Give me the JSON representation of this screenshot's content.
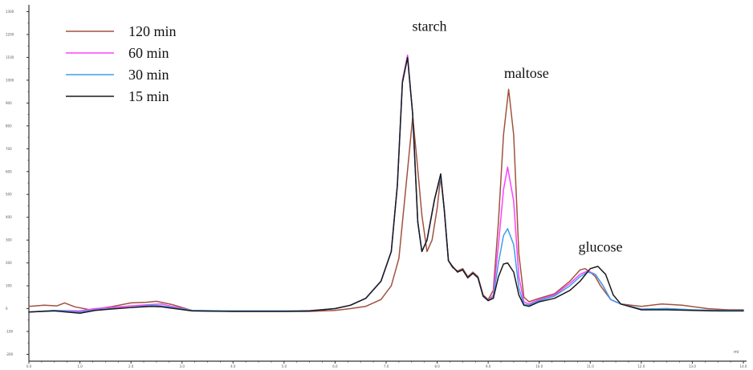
{
  "chart_data": {
    "type": "line",
    "title": "",
    "xlabel": "",
    "ylabel": "",
    "x_unit": "mi",
    "grid": false,
    "legend_position": "top-left",
    "xlim": [
      0.0,
      14.0
    ],
    "ylim": [
      -230,
      1330
    ],
    "x_tick_labels": [
      "0.0",
      "1.0",
      "2.0",
      "3.0",
      "4.0",
      "5.0",
      "6.0",
      "7.0",
      "8.0",
      "9.0",
      "10.0",
      "11.0",
      "12.0",
      "13.0",
      "14.0"
    ],
    "y_tick_labels": [
      "-200",
      "-100",
      "0",
      "100",
      "200",
      "300",
      "400",
      "500",
      "600",
      "700",
      "800",
      "900",
      "1000",
      "1100",
      "1200",
      "1300"
    ],
    "annotations": [
      {
        "text": "starch",
        "x": 7.85,
        "y": 1215
      },
      {
        "text": "maltose",
        "x": 9.75,
        "y": 1010
      },
      {
        "text": "glucose",
        "x": 11.2,
        "y": 250
      }
    ],
    "series": [
      {
        "name": "120 min",
        "color": "#a0523e",
        "points": [
          [
            0.0,
            10
          ],
          [
            0.3,
            15
          ],
          [
            0.55,
            12
          ],
          [
            0.7,
            25
          ],
          [
            0.9,
            8
          ],
          [
            1.2,
            -5
          ],
          [
            1.6,
            8
          ],
          [
            2.0,
            25
          ],
          [
            2.3,
            28
          ],
          [
            2.5,
            32
          ],
          [
            2.8,
            18
          ],
          [
            3.2,
            -8
          ],
          [
            4.0,
            -12
          ],
          [
            5.0,
            -12
          ],
          [
            5.5,
            -12
          ],
          [
            6.0,
            -8
          ],
          [
            6.3,
            0
          ],
          [
            6.6,
            10
          ],
          [
            6.9,
            40
          ],
          [
            7.1,
            100
          ],
          [
            7.25,
            220
          ],
          [
            7.4,
            560
          ],
          [
            7.52,
            840
          ],
          [
            7.6,
            660
          ],
          [
            7.7,
            410
          ],
          [
            7.8,
            250
          ],
          [
            7.9,
            300
          ],
          [
            8.0,
            440
          ],
          [
            8.07,
            580
          ],
          [
            8.14,
            430
          ],
          [
            8.22,
            210
          ],
          [
            8.3,
            180
          ],
          [
            8.4,
            165
          ],
          [
            8.5,
            175
          ],
          [
            8.6,
            140
          ],
          [
            8.7,
            160
          ],
          [
            8.8,
            140
          ],
          [
            8.9,
            60
          ],
          [
            9.0,
            40
          ],
          [
            9.1,
            80
          ],
          [
            9.2,
            380
          ],
          [
            9.3,
            760
          ],
          [
            9.4,
            960
          ],
          [
            9.5,
            760
          ],
          [
            9.6,
            240
          ],
          [
            9.7,
            50
          ],
          [
            9.8,
            30
          ],
          [
            10.0,
            45
          ],
          [
            10.3,
            65
          ],
          [
            10.6,
            120
          ],
          [
            10.8,
            170
          ],
          [
            10.9,
            175
          ],
          [
            11.0,
            160
          ],
          [
            11.1,
            140
          ],
          [
            11.2,
            100
          ],
          [
            11.4,
            40
          ],
          [
            11.6,
            20
          ],
          [
            12.0,
            10
          ],
          [
            12.4,
            20
          ],
          [
            12.8,
            15
          ],
          [
            13.3,
            0
          ],
          [
            13.7,
            -5
          ],
          [
            14.0,
            -5
          ]
        ]
      },
      {
        "name": "60 min",
        "color": "#ff40ff",
        "points": [
          [
            0.0,
            -15
          ],
          [
            0.5,
            -8
          ],
          [
            1.0,
            -10
          ],
          [
            1.3,
            0
          ],
          [
            1.6,
            5
          ],
          [
            2.0,
            12
          ],
          [
            2.4,
            18
          ],
          [
            2.6,
            20
          ],
          [
            2.8,
            10
          ],
          [
            3.2,
            -8
          ],
          [
            4.0,
            -10
          ],
          [
            5.0,
            -10
          ],
          [
            5.5,
            -9
          ],
          [
            6.0,
            0
          ],
          [
            6.3,
            15
          ],
          [
            6.6,
            45
          ],
          [
            6.9,
            120
          ],
          [
            7.1,
            250
          ],
          [
            7.22,
            540
          ],
          [
            7.32,
            1000
          ],
          [
            7.42,
            1110
          ],
          [
            7.52,
            850
          ],
          [
            7.62,
            380
          ],
          [
            7.7,
            250
          ],
          [
            7.8,
            300
          ],
          [
            7.95,
            480
          ],
          [
            8.07,
            580
          ],
          [
            8.14,
            430
          ],
          [
            8.22,
            210
          ],
          [
            8.3,
            185
          ],
          [
            8.4,
            160
          ],
          [
            8.5,
            170
          ],
          [
            8.6,
            135
          ],
          [
            8.7,
            155
          ],
          [
            8.8,
            135
          ],
          [
            8.9,
            55
          ],
          [
            9.0,
            35
          ],
          [
            9.1,
            60
          ],
          [
            9.2,
            280
          ],
          [
            9.3,
            520
          ],
          [
            9.38,
            620
          ],
          [
            9.5,
            470
          ],
          [
            9.6,
            140
          ],
          [
            9.7,
            30
          ],
          [
            9.8,
            20
          ],
          [
            10.0,
            40
          ],
          [
            10.3,
            60
          ],
          [
            10.6,
            110
          ],
          [
            10.8,
            150
          ],
          [
            10.95,
            165
          ],
          [
            11.1,
            150
          ],
          [
            11.25,
            100
          ],
          [
            11.4,
            40
          ],
          [
            11.6,
            20
          ],
          [
            12.0,
            -2
          ],
          [
            12.5,
            0
          ],
          [
            13.0,
            -5
          ],
          [
            13.5,
            -8
          ],
          [
            14.0,
            -8
          ]
        ]
      },
      {
        "name": "30 min",
        "color": "#3f9fe8",
        "points": [
          [
            0.0,
            -15
          ],
          [
            0.5,
            -8
          ],
          [
            1.0,
            -15
          ],
          [
            1.3,
            -5
          ],
          [
            1.6,
            0
          ],
          [
            2.0,
            5
          ],
          [
            2.4,
            15
          ],
          [
            2.6,
            12
          ],
          [
            2.8,
            5
          ],
          [
            3.2,
            -8
          ],
          [
            4.0,
            -10
          ],
          [
            5.0,
            -10
          ],
          [
            5.5,
            -9
          ],
          [
            6.0,
            0
          ],
          [
            6.3,
            15
          ],
          [
            6.6,
            45
          ],
          [
            6.9,
            120
          ],
          [
            7.1,
            250
          ],
          [
            7.22,
            540
          ],
          [
            7.32,
            990
          ],
          [
            7.42,
            1100
          ],
          [
            7.52,
            850
          ],
          [
            7.62,
            380
          ],
          [
            7.7,
            250
          ],
          [
            7.8,
            300
          ],
          [
            7.95,
            480
          ],
          [
            8.07,
            580
          ],
          [
            8.14,
            430
          ],
          [
            8.22,
            210
          ],
          [
            8.3,
            185
          ],
          [
            8.4,
            160
          ],
          [
            8.5,
            170
          ],
          [
            8.6,
            135
          ],
          [
            8.7,
            155
          ],
          [
            8.8,
            135
          ],
          [
            8.9,
            55
          ],
          [
            9.0,
            35
          ],
          [
            9.1,
            50
          ],
          [
            9.2,
            200
          ],
          [
            9.3,
            320
          ],
          [
            9.38,
            350
          ],
          [
            9.5,
            280
          ],
          [
            9.6,
            90
          ],
          [
            9.7,
            20
          ],
          [
            9.8,
            15
          ],
          [
            10.0,
            35
          ],
          [
            10.3,
            55
          ],
          [
            10.6,
            100
          ],
          [
            10.8,
            140
          ],
          [
            10.95,
            160
          ],
          [
            11.1,
            150
          ],
          [
            11.25,
            100
          ],
          [
            11.4,
            40
          ],
          [
            11.6,
            20
          ],
          [
            12.0,
            -2
          ],
          [
            12.5,
            0
          ],
          [
            13.0,
            -5
          ],
          [
            13.5,
            -8
          ],
          [
            14.0,
            -8
          ]
        ]
      },
      {
        "name": "15 min",
        "color": "#1a1a1a",
        "points": [
          [
            0.0,
            -15
          ],
          [
            0.5,
            -10
          ],
          [
            1.0,
            -20
          ],
          [
            1.3,
            -8
          ],
          [
            1.6,
            -2
          ],
          [
            2.0,
            5
          ],
          [
            2.4,
            10
          ],
          [
            2.6,
            8
          ],
          [
            2.8,
            2
          ],
          [
            3.2,
            -10
          ],
          [
            4.0,
            -12
          ],
          [
            5.0,
            -12
          ],
          [
            5.5,
            -10
          ],
          [
            6.0,
            0
          ],
          [
            6.3,
            15
          ],
          [
            6.6,
            45
          ],
          [
            6.9,
            120
          ],
          [
            7.1,
            250
          ],
          [
            7.22,
            540
          ],
          [
            7.32,
            990
          ],
          [
            7.42,
            1100
          ],
          [
            7.52,
            850
          ],
          [
            7.62,
            380
          ],
          [
            7.7,
            250
          ],
          [
            7.8,
            300
          ],
          [
            7.95,
            480
          ],
          [
            8.07,
            590
          ],
          [
            8.14,
            430
          ],
          [
            8.22,
            210
          ],
          [
            8.3,
            185
          ],
          [
            8.4,
            160
          ],
          [
            8.5,
            170
          ],
          [
            8.6,
            135
          ],
          [
            8.7,
            155
          ],
          [
            8.8,
            135
          ],
          [
            8.9,
            55
          ],
          [
            9.0,
            35
          ],
          [
            9.1,
            45
          ],
          [
            9.2,
            140
          ],
          [
            9.3,
            195
          ],
          [
            9.38,
            200
          ],
          [
            9.5,
            160
          ],
          [
            9.6,
            60
          ],
          [
            9.7,
            15
          ],
          [
            9.8,
            10
          ],
          [
            10.0,
            30
          ],
          [
            10.3,
            45
          ],
          [
            10.6,
            80
          ],
          [
            10.8,
            120
          ],
          [
            11.0,
            175
          ],
          [
            11.15,
            185
          ],
          [
            11.3,
            150
          ],
          [
            11.45,
            60
          ],
          [
            11.6,
            20
          ],
          [
            12.0,
            -5
          ],
          [
            12.5,
            -5
          ],
          [
            13.0,
            -8
          ],
          [
            13.5,
            -10
          ],
          [
            14.0,
            -10
          ]
        ]
      }
    ]
  }
}
